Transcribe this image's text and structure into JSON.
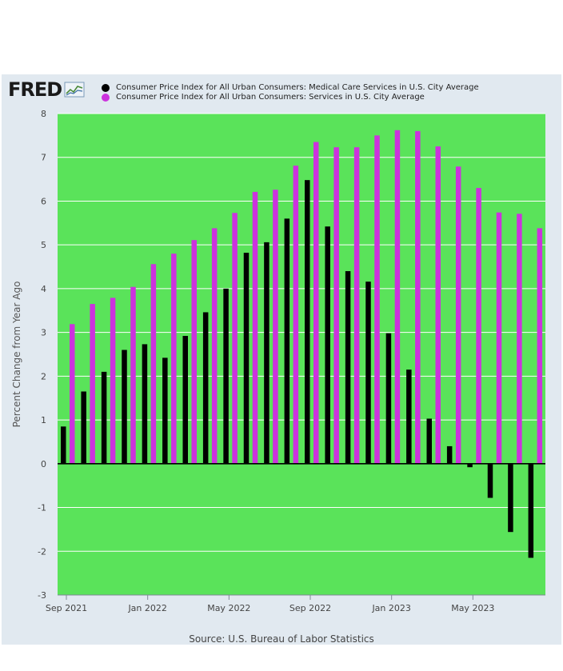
{
  "brand": {
    "logo_text": "FRED"
  },
  "chart_data": {
    "type": "bar",
    "title": "",
    "xlabel": "",
    "ylabel": "Percent Change from Year Ago",
    "ylim": [
      -3,
      8
    ],
    "yticks": [
      -3,
      -2,
      -1,
      0,
      1,
      2,
      3,
      4,
      5,
      6,
      7,
      8
    ],
    "grid": true,
    "legend_placement": "top",
    "plot_background": "#5ae35a",
    "categories": [
      "2021-09",
      "2021-10",
      "2021-11",
      "2021-12",
      "2022-01",
      "2022-02",
      "2022-03",
      "2022-04",
      "2022-05",
      "2022-06",
      "2022-07",
      "2022-08",
      "2022-09",
      "2022-10",
      "2022-11",
      "2022-12",
      "2023-01",
      "2023-02",
      "2023-03",
      "2023-04",
      "2023-05",
      "2023-06",
      "2023-07",
      "2023-08"
    ],
    "x_tick_labels": [
      {
        "category": "2021-09",
        "label": "Sep 2021"
      },
      {
        "category": "2022-01",
        "label": "Jan 2022"
      },
      {
        "category": "2022-05",
        "label": "May 2022"
      },
      {
        "category": "2022-09",
        "label": "Sep 2022"
      },
      {
        "category": "2023-01",
        "label": "Jan 2023"
      },
      {
        "category": "2023-05",
        "label": "May 2023"
      }
    ],
    "series": [
      {
        "name": "Consumer Price Index for All Urban Consumers: Medical Care Services in U.S. City Average",
        "color": "#000000",
        "values": [
          0.85,
          1.65,
          2.1,
          2.6,
          2.73,
          2.42,
          2.92,
          3.46,
          4.0,
          4.82,
          5.06,
          5.6,
          6.48,
          5.42,
          4.4,
          4.16,
          2.98,
          2.15,
          1.03,
          0.4,
          -0.08,
          -0.78,
          -1.56,
          -2.15
        ]
      },
      {
        "name": "Consumer Price Index for All Urban Consumers: Services in U.S. City Average",
        "color": "#cc33dd",
        "values": [
          3.19,
          3.65,
          3.79,
          4.04,
          4.56,
          4.8,
          5.11,
          5.38,
          5.73,
          6.21,
          6.26,
          6.81,
          7.35,
          7.23,
          7.23,
          7.5,
          7.62,
          7.6,
          7.25,
          6.79,
          6.3,
          5.74,
          5.71,
          5.38
        ]
      }
    ]
  },
  "footer": {
    "source": "Source: U.S. Bureau of Labor Statistics"
  }
}
